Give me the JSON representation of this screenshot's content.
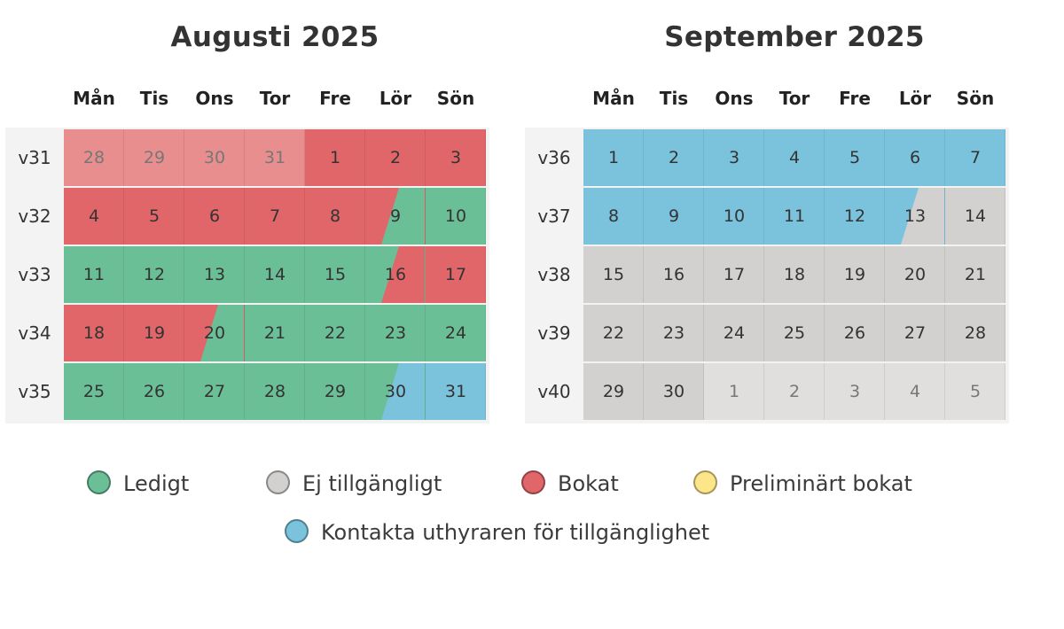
{
  "colors": {
    "free": "#6bbf97",
    "unavailable": "#d2d1cf",
    "unavailable_light": "#e0dfdd",
    "booked": "#e0666a",
    "booked_light": "#e88e8f",
    "preliminary": "#fde58a",
    "contact": "#7bc3dc"
  },
  "months": [
    {
      "title": "Augusti 2025",
      "weekday_labels": [
        "Mån",
        "Tis",
        "Ons",
        "Tor",
        "Fre",
        "Lör",
        "Sön"
      ],
      "weeks": [
        {
          "label": "v31",
          "days": [
            {
              "num": "28",
              "status": "booked",
              "faded": true
            },
            {
              "num": "29",
              "status": "booked",
              "faded": true
            },
            {
              "num": "30",
              "status": "booked",
              "faded": true
            },
            {
              "num": "31",
              "status": "booked",
              "faded": true
            },
            {
              "num": "1",
              "status": "booked"
            },
            {
              "num": "2",
              "status": "booked"
            },
            {
              "num": "3",
              "status": "booked"
            }
          ]
        },
        {
          "label": "v32",
          "days": [
            {
              "num": "4",
              "status": "booked"
            },
            {
              "num": "5",
              "status": "booked"
            },
            {
              "num": "6",
              "status": "booked"
            },
            {
              "num": "7",
              "status": "booked"
            },
            {
              "num": "8",
              "status": "booked"
            },
            {
              "num": "9",
              "status": "booked",
              "split_to": "free"
            },
            {
              "num": "10",
              "status": "free"
            }
          ]
        },
        {
          "label": "v33",
          "days": [
            {
              "num": "11",
              "status": "free"
            },
            {
              "num": "12",
              "status": "free"
            },
            {
              "num": "13",
              "status": "free"
            },
            {
              "num": "14",
              "status": "free"
            },
            {
              "num": "15",
              "status": "free"
            },
            {
              "num": "16",
              "status": "free",
              "split_to": "booked"
            },
            {
              "num": "17",
              "status": "booked"
            }
          ]
        },
        {
          "label": "v34",
          "days": [
            {
              "num": "18",
              "status": "booked"
            },
            {
              "num": "19",
              "status": "booked"
            },
            {
              "num": "20",
              "status": "booked",
              "split_to": "free"
            },
            {
              "num": "21",
              "status": "free"
            },
            {
              "num": "22",
              "status": "free"
            },
            {
              "num": "23",
              "status": "free"
            },
            {
              "num": "24",
              "status": "free"
            }
          ]
        },
        {
          "label": "v35",
          "days": [
            {
              "num": "25",
              "status": "free"
            },
            {
              "num": "26",
              "status": "free"
            },
            {
              "num": "27",
              "status": "free"
            },
            {
              "num": "28",
              "status": "free"
            },
            {
              "num": "29",
              "status": "free"
            },
            {
              "num": "30",
              "status": "free",
              "split_to": "contact"
            },
            {
              "num": "31",
              "status": "contact"
            }
          ]
        }
      ]
    },
    {
      "title": "September 2025",
      "weekday_labels": [
        "Mån",
        "Tis",
        "Ons",
        "Tor",
        "Fre",
        "Lör",
        "Sön"
      ],
      "weeks": [
        {
          "label": "v36",
          "days": [
            {
              "num": "1",
              "status": "contact"
            },
            {
              "num": "2",
              "status": "contact"
            },
            {
              "num": "3",
              "status": "contact"
            },
            {
              "num": "4",
              "status": "contact"
            },
            {
              "num": "5",
              "status": "contact"
            },
            {
              "num": "6",
              "status": "contact"
            },
            {
              "num": "7",
              "status": "contact"
            }
          ]
        },
        {
          "label": "v37",
          "days": [
            {
              "num": "8",
              "status": "contact"
            },
            {
              "num": "9",
              "status": "contact"
            },
            {
              "num": "10",
              "status": "contact"
            },
            {
              "num": "11",
              "status": "contact"
            },
            {
              "num": "12",
              "status": "contact"
            },
            {
              "num": "13",
              "status": "contact",
              "split_to": "unavailable"
            },
            {
              "num": "14",
              "status": "unavailable"
            }
          ]
        },
        {
          "label": "v38",
          "days": [
            {
              "num": "15",
              "status": "unavailable"
            },
            {
              "num": "16",
              "status": "unavailable"
            },
            {
              "num": "17",
              "status": "unavailable"
            },
            {
              "num": "18",
              "status": "unavailable"
            },
            {
              "num": "19",
              "status": "unavailable"
            },
            {
              "num": "20",
              "status": "unavailable"
            },
            {
              "num": "21",
              "status": "unavailable"
            }
          ]
        },
        {
          "label": "v39",
          "days": [
            {
              "num": "22",
              "status": "unavailable"
            },
            {
              "num": "23",
              "status": "unavailable"
            },
            {
              "num": "24",
              "status": "unavailable"
            },
            {
              "num": "25",
              "status": "unavailable"
            },
            {
              "num": "26",
              "status": "unavailable"
            },
            {
              "num": "27",
              "status": "unavailable"
            },
            {
              "num": "28",
              "status": "unavailable"
            }
          ]
        },
        {
          "label": "v40",
          "days": [
            {
              "num": "29",
              "status": "unavailable"
            },
            {
              "num": "30",
              "status": "unavailable"
            },
            {
              "num": "1",
              "status": "unavailable_light",
              "faded": true
            },
            {
              "num": "2",
              "status": "unavailable_light",
              "faded": true
            },
            {
              "num": "3",
              "status": "unavailable_light",
              "faded": true
            },
            {
              "num": "4",
              "status": "unavailable_light",
              "faded": true
            },
            {
              "num": "5",
              "status": "unavailable_light",
              "faded": true
            }
          ]
        }
      ]
    }
  ],
  "legend": [
    {
      "key": "free",
      "label": "Ledigt",
      "icon": "green-dot-icon"
    },
    {
      "key": "unavailable",
      "label": "Ej tillgängligt",
      "icon": "grey-dot-icon"
    },
    {
      "key": "booked",
      "label": "Bokat",
      "icon": "red-dot-icon"
    },
    {
      "key": "preliminary",
      "label": "Preliminärt bokat",
      "icon": "yellow-dot-icon"
    },
    {
      "key": "contact",
      "label": "Kontakta uthyraren för tillgänglighet",
      "icon": "blue-dot-icon"
    }
  ]
}
